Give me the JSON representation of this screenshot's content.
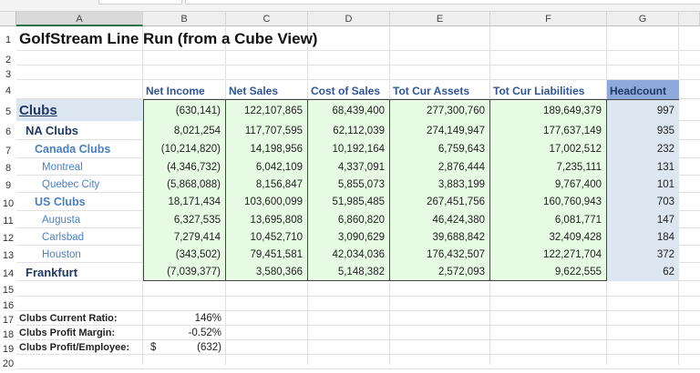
{
  "columns": [
    "A",
    "B",
    "C",
    "D",
    "E",
    "F",
    "G"
  ],
  "row_numbers": [
    "1",
    "2",
    "3",
    "4",
    "5",
    "6",
    "7",
    "8",
    "9",
    "10",
    "11",
    "12",
    "13",
    "14",
    "15",
    "16",
    "17",
    "18",
    "19",
    "20"
  ],
  "title": "GolfStream Line Run (from a Cube View)",
  "headers": [
    "Net Income",
    "Net Sales",
    "Cost of Sales",
    "Tot Cur Assets",
    "Tot Cur Liabilities",
    "Headcount"
  ],
  "rows": [
    {
      "label": "Clubs",
      "values": [
        "(630,141)",
        "122,107,865",
        "68,439,400",
        "277,300,760",
        "189,649,379",
        "997"
      ]
    },
    {
      "label": "NA Clubs",
      "values": [
        "8,021,254",
        "117,707,595",
        "62,112,039",
        "274,149,947",
        "177,637,149",
        "935"
      ]
    },
    {
      "label": "Canada Clubs",
      "values": [
        "(10,214,820)",
        "14,198,956",
        "10,192,164",
        "6,759,643",
        "17,002,512",
        "232"
      ]
    },
    {
      "label": "Montreal",
      "values": [
        "(4,346,732)",
        "6,042,109",
        "4,337,091",
        "2,876,444",
        "7,235,111",
        "131"
      ]
    },
    {
      "label": "Quebec City",
      "values": [
        "(5,868,088)",
        "8,156,847",
        "5,855,073",
        "3,883,199",
        "9,767,400",
        "101"
      ]
    },
    {
      "label": "US Clubs",
      "values": [
        "18,171,434",
        "103,600,099",
        "51,985,485",
        "267,451,756",
        "160,760,943",
        "703"
      ]
    },
    {
      "label": "Augusta",
      "values": [
        "6,327,535",
        "13,695,808",
        "6,860,820",
        "46,424,380",
        "6,081,771",
        "147"
      ]
    },
    {
      "label": "Carlsbad",
      "values": [
        "7,279,414",
        "10,452,710",
        "3,090,629",
        "39,688,842",
        "32,409,428",
        "184"
      ]
    },
    {
      "label": "Houston",
      "values": [
        "(343,502)",
        "79,451,581",
        "42,034,036",
        "176,432,507",
        "122,271,704",
        "372"
      ]
    },
    {
      "label": "Frankfurt",
      "values": [
        "(7,039,377)",
        "3,580,366",
        "5,148,382",
        "2,572,093",
        "9,622,555",
        "62"
      ]
    }
  ],
  "summary": [
    {
      "label": "Clubs Current Ratio:",
      "currency": "",
      "value": "146%"
    },
    {
      "label": "Clubs Profit Margin:",
      "currency": "",
      "value": "-0.52%"
    },
    {
      "label": "Clubs Profit/Employee:",
      "currency": "$",
      "value": "(632)"
    }
  ]
}
